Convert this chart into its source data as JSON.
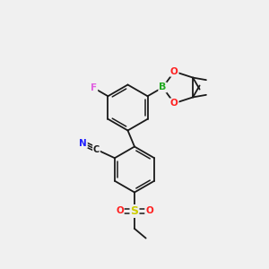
{
  "background_color": "#f0f0f0",
  "bond_color": "#1a1a1a",
  "figsize": [
    3.0,
    3.0
  ],
  "dpi": 100,
  "colors": {
    "F": "#e060e0",
    "N": "#2020ff",
    "C": "#1a1a1a",
    "B": "#22aa22",
    "O": "#ff2020",
    "S": "#cccc00"
  },
  "lw_single": 1.3,
  "lw_double": 1.1,
  "ring_r": 0.85
}
